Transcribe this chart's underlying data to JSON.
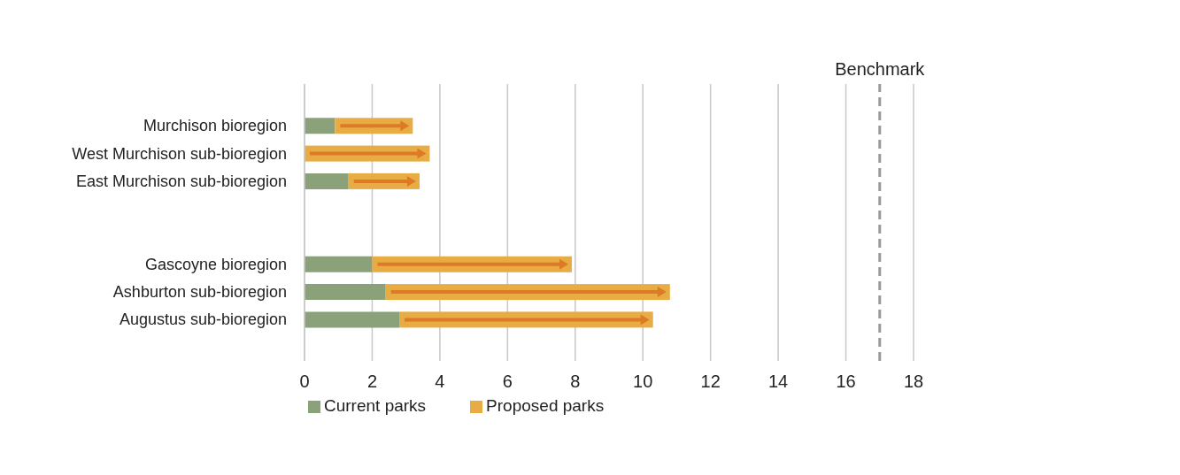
{
  "chart_data": {
    "type": "bar",
    "orientation": "horizontal",
    "stacked": true,
    "categories": [
      null,
      "Murchison bioregion",
      "West Murchison sub-bioregion",
      "East Murchison sub-bioregion",
      null,
      null,
      "Gascoyne bioregion",
      "Ashburton sub-bioregion",
      "Augustus sub-bioregion",
      null
    ],
    "series": [
      {
        "name": "Current parks",
        "color": "#8aa179",
        "values": [
          null,
          0.9,
          0,
          1.3,
          null,
          null,
          2.0,
          2.4,
          2.8,
          null
        ]
      },
      {
        "name": "Proposed parks",
        "color": "#e8ac45",
        "values": [
          null,
          2.3,
          3.7,
          2.1,
          null,
          null,
          5.9,
          8.4,
          7.5,
          null
        ]
      }
    ],
    "xlim": [
      0,
      18
    ],
    "xticks": [
      0,
      2,
      4,
      6,
      8,
      10,
      12,
      14,
      16,
      18
    ],
    "grid": "x",
    "legend": "bottom",
    "ref_lines": [
      {
        "axis": "x",
        "value": 17,
        "label": "Benchmark",
        "color": "#999999",
        "line_style": "dashed"
      }
    ]
  }
}
